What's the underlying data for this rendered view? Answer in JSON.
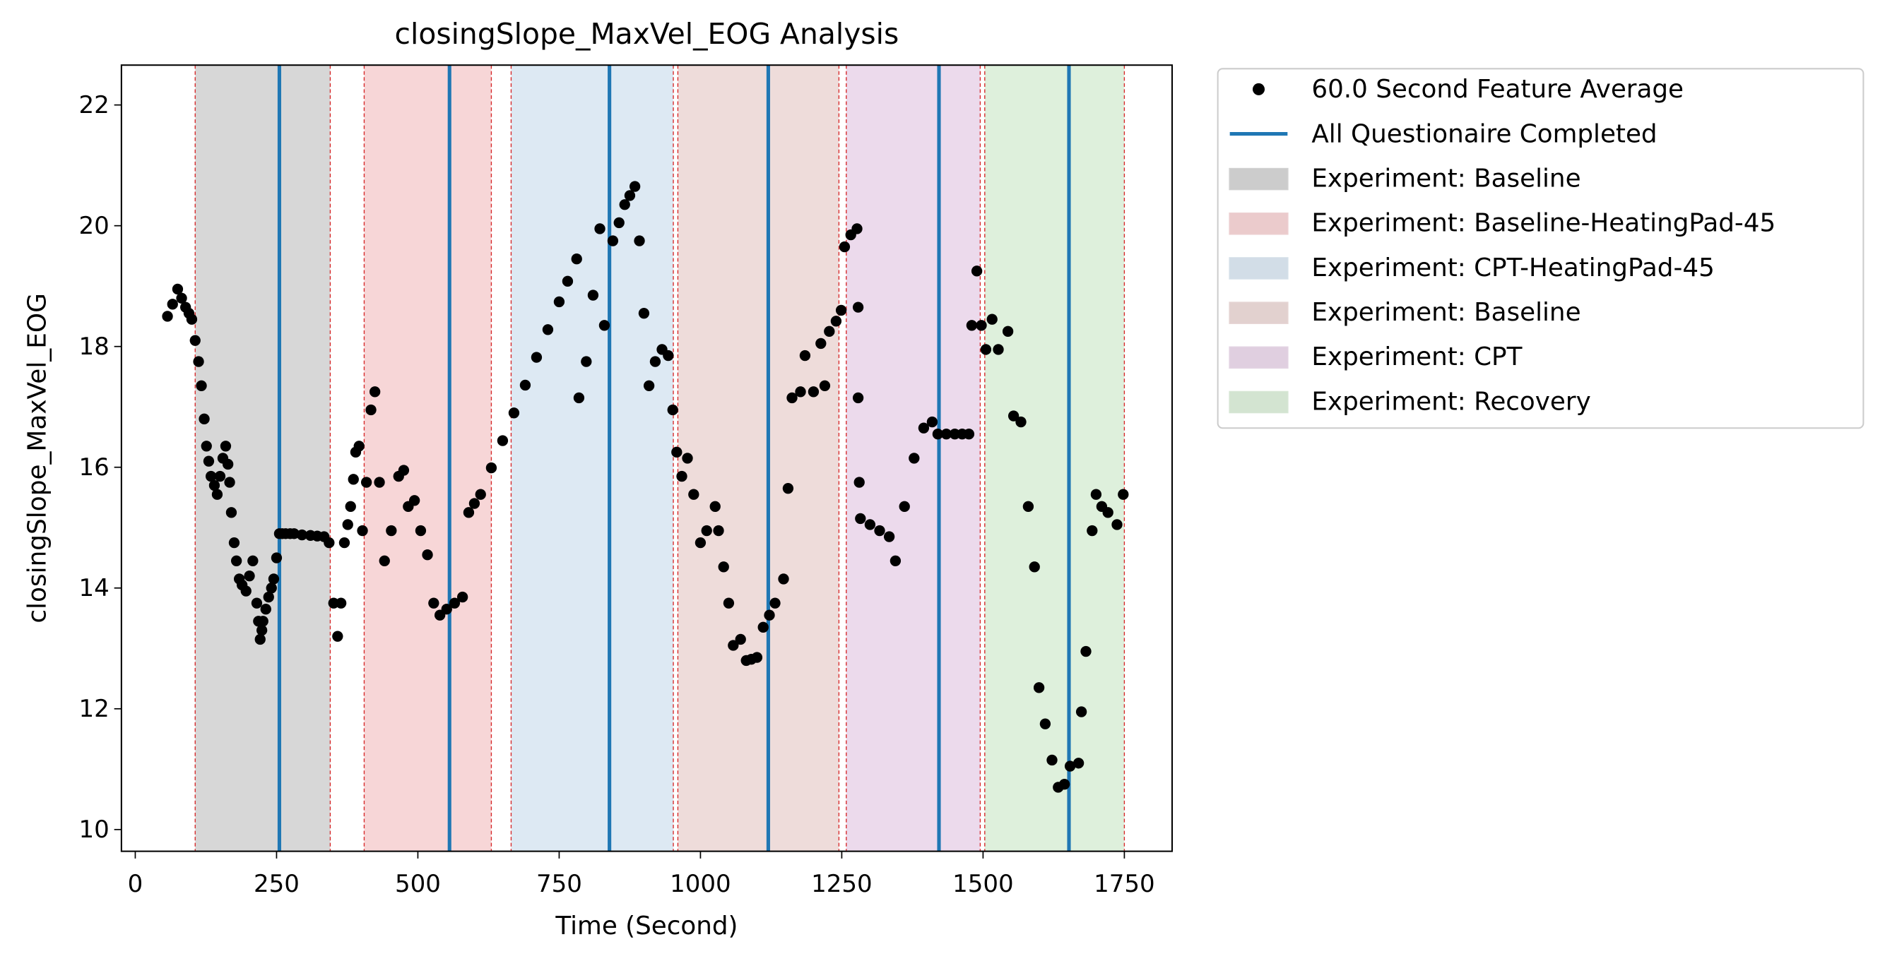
{
  "chart_data": {
    "type": "scatter",
    "title": "closingSlope_MaxVel_EOG Analysis",
    "xlabel": "Time (Second)",
    "ylabel": "closingSlope_MaxVel_EOG",
    "xlim": [
      -24.5,
      1834.5
    ],
    "ylim": [
      9.64,
      22.66
    ],
    "xticks": [
      0,
      250,
      500,
      750,
      1000,
      1250,
      1500,
      1750
    ],
    "yticks": [
      10,
      12,
      14,
      16,
      18,
      20,
      22
    ],
    "grid": false,
    "legend": "outside upper right",
    "series": [
      {
        "name": "60.0 Second Feature Average",
        "color": "#000000",
        "x": [
          57,
          66,
          75,
          82,
          89,
          95,
          100,
          106,
          112,
          117,
          122,
          126,
          130,
          134,
          140,
          145,
          150,
          155,
          160,
          164,
          167,
          170,
          175,
          179,
          184,
          189,
          196,
          202,
          208,
          215,
          218,
          221,
          224,
          226,
          231,
          236,
          241,
          245,
          250,
          255,
          260,
          266,
          274,
          281,
          295,
          310,
          322,
          334,
          343,
          351,
          358,
          364,
          370,
          376,
          381,
          386,
          390,
          396,
          402,
          409,
          417,
          424,
          432,
          441,
          453,
          466,
          475,
          483,
          494,
          505,
          517,
          528,
          539,
          551,
          565,
          579,
          590,
          600,
          611,
          630,
          650,
          670,
          690,
          710,
          730,
          750,
          765,
          781,
          785,
          798,
          810,
          822,
          830,
          845,
          856,
          866,
          875,
          884,
          892,
          900,
          909,
          920,
          932,
          943,
          951,
          958,
          967,
          977,
          988,
          1000,
          1011,
          1026,
          1032,
          1041,
          1050,
          1058,
          1071,
          1081,
          1090,
          1100,
          1111,
          1122,
          1132,
          1147,
          1155,
          1162,
          1177,
          1185,
          1200,
          1213,
          1220,
          1228,
          1240,
          1249,
          1255,
          1266,
          1277,
          1279,
          1279,
          1281,
          1283,
          1300,
          1317,
          1334,
          1345,
          1361,
          1378,
          1395,
          1410,
          1420,
          1435,
          1450,
          1463,
          1475,
          1480,
          1489,
          1497,
          1505,
          1516,
          1527,
          1544,
          1554,
          1567,
          1580,
          1591,
          1599,
          1610,
          1622,
          1633,
          1644,
          1654,
          1669,
          1674,
          1682,
          1693,
          1700,
          1710,
          1721,
          1737,
          1748
        ],
        "values": [
          18.5,
          18.7,
          18.95,
          18.8,
          18.65,
          18.55,
          18.45,
          18.1,
          17.75,
          17.35,
          16.8,
          16.35,
          16.1,
          15.85,
          15.7,
          15.55,
          15.85,
          16.15,
          16.35,
          16.05,
          15.75,
          15.25,
          14.75,
          14.45,
          14.15,
          14.05,
          13.95,
          14.2,
          14.45,
          13.75,
          13.45,
          13.15,
          13.3,
          13.45,
          13.65,
          13.85,
          14.0,
          14.15,
          14.5,
          14.9,
          14.9,
          14.9,
          14.9,
          14.9,
          14.88,
          14.87,
          14.86,
          14.85,
          14.75,
          13.75,
          13.2,
          13.75,
          14.75,
          15.05,
          15.35,
          15.8,
          16.25,
          16.35,
          14.95,
          15.75,
          16.95,
          17.25,
          15.75,
          14.45,
          14.95,
          15.85,
          15.95,
          15.35,
          15.45,
          14.95,
          14.55,
          13.75,
          13.55,
          13.65,
          13.75,
          13.85,
          15.25,
          15.4,
          15.55,
          15.99,
          16.44,
          16.9,
          17.36,
          17.82,
          18.28,
          18.74,
          19.08,
          19.45,
          17.15,
          17.75,
          18.85,
          19.95,
          18.35,
          19.75,
          20.05,
          20.35,
          20.5,
          20.65,
          19.75,
          18.55,
          17.35,
          17.75,
          17.95,
          17.85,
          16.95,
          16.25,
          15.85,
          16.15,
          15.55,
          14.75,
          14.95,
          15.35,
          14.95,
          14.35,
          13.75,
          13.05,
          13.15,
          12.8,
          12.82,
          12.85,
          13.35,
          13.55,
          13.75,
          14.15,
          15.65,
          17.15,
          17.25,
          17.85,
          17.25,
          18.05,
          17.35,
          18.25,
          18.42,
          18.6,
          19.65,
          19.85,
          19.95,
          18.65,
          17.15,
          15.75,
          15.15,
          15.05,
          14.95,
          14.85,
          14.45,
          15.35,
          16.15,
          16.65,
          16.75,
          16.55,
          16.55,
          16.55,
          16.55,
          16.55,
          18.35,
          19.25,
          18.35,
          17.95,
          18.45,
          17.95,
          18.25,
          16.85,
          16.75,
          15.35,
          14.35,
          12.35,
          11.75,
          11.15,
          10.7,
          10.75,
          11.05,
          11.1,
          11.95,
          12.95,
          14.95,
          15.55,
          15.35,
          15.25,
          15.05,
          15.55
        ]
      }
    ],
    "vlines": {
      "name": "All Questionaire Completed",
      "color": "#1f77b4",
      "x": [
        255,
        556,
        839,
        1120,
        1422,
        1652
      ]
    },
    "spans": [
      {
        "name": "Experiment: Baseline",
        "color": "#d7d7d7",
        "range": [
          106,
          345
        ]
      },
      {
        "name": "Experiment: Baseline-HeatingPad-45",
        "color": "#f7d6d7",
        "range": [
          405,
          630
        ]
      },
      {
        "name": "Experiment: CPT-HeatingPad-45",
        "color": "#dde9f3",
        "range": [
          665,
          952
        ]
      },
      {
        "name": "Experiment: Baseline",
        "color": "#eedcda",
        "range": [
          960,
          1245
        ]
      },
      {
        "name": "Experiment: CPT",
        "color": "#ecdaec",
        "range": [
          1258,
          1495
        ]
      },
      {
        "name": "Experiment: Recovery",
        "color": "#def0dc",
        "range": [
          1503,
          1750
        ]
      }
    ],
    "span_edge_color": "#d62728"
  }
}
